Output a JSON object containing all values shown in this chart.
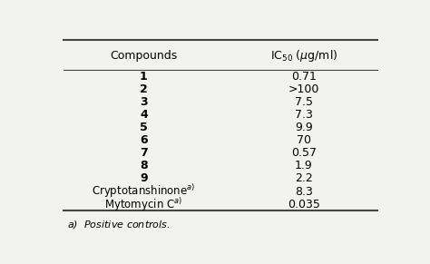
{
  "col1_header": "Compounds",
  "col2_header": "IC$_{50}$ ($\\mu$g/ml)",
  "rows": [
    {
      "compound": "1",
      "ic50": "0.71",
      "bold": true
    },
    {
      "compound": "2",
      "ic50": ">100",
      "bold": true
    },
    {
      "compound": "3",
      "ic50": "7.5",
      "bold": true
    },
    {
      "compound": "4",
      "ic50": "7.3",
      "bold": true
    },
    {
      "compound": "5",
      "ic50": "9.9",
      "bold": true
    },
    {
      "compound": "6",
      "ic50": "70",
      "bold": true
    },
    {
      "compound": "7",
      "ic50": "0.57",
      "bold": true
    },
    {
      "compound": "8",
      "ic50": "1.9",
      "bold": true
    },
    {
      "compound": "9",
      "ic50": "2.2",
      "bold": true
    },
    {
      "compound": "Cryptotanshinone$^{a)}$",
      "ic50": "8.3",
      "bold": false
    },
    {
      "compound": "Mytomycin C$^{a)}$",
      "ic50": "0.035",
      "bold": false
    }
  ],
  "footnote": "$a$)  Positive controls.",
  "bg_color": "#f2f2ee",
  "line_color": "#444444"
}
